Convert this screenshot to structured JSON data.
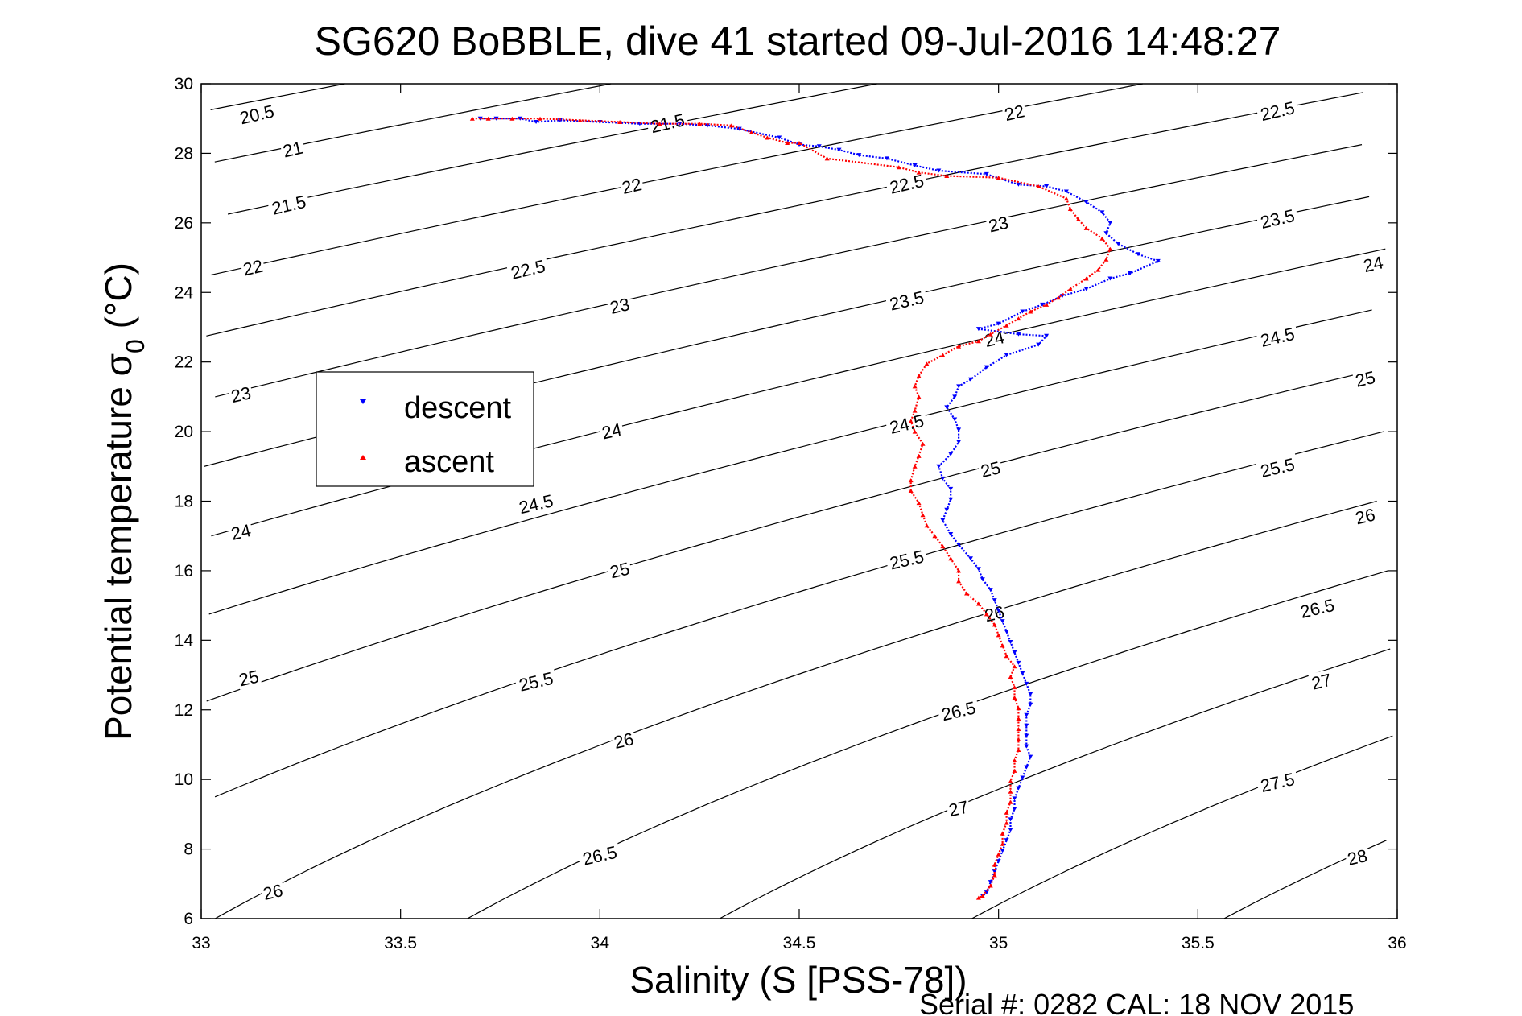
{
  "chart_data": {
    "type": "scatter",
    "title": "SG620 BoBBLE, dive 41 started 09-Jul-2016 14:48:27",
    "xlabel": "Salinity (S [PSS-78])",
    "ylabel": "Potential temperature σ",
    "ylabel_sub": "0",
    "ylabel_unit": " (°C)",
    "xlim": [
      33,
      36
    ],
    "ylim": [
      6,
      30
    ],
    "x_ticks": [
      "33",
      "33.5",
      "34",
      "34.5",
      "35",
      "35.5",
      "36"
    ],
    "y_ticks": [
      "6",
      "8",
      "10",
      "12",
      "14",
      "16",
      "18",
      "20",
      "22",
      "24",
      "26",
      "28",
      "30"
    ],
    "grid": false,
    "legend_position": "upper-left",
    "contour_levels": [
      20.5,
      21,
      21.5,
      22,
      22.5,
      23,
      23.5,
      24,
      24.5,
      25,
      25.5,
      26,
      26.5,
      27,
      27.5,
      28
    ],
    "contour_labels": [
      {
        "text": "20.5",
        "s": 33.14,
        "t": 29.1
      },
      {
        "text": "21",
        "s": 33.23,
        "t": 28.1
      },
      {
        "text": "21.5",
        "s": 33.22,
        "t": 26.5
      },
      {
        "text": "22",
        "s": 33.13,
        "t": 24.7
      },
      {
        "text": "23",
        "s": 33.1,
        "t": 21.05
      },
      {
        "text": "24",
        "s": 33.1,
        "t": 17.1
      },
      {
        "text": "25",
        "s": 33.12,
        "t": 12.9
      },
      {
        "text": "26",
        "s": 33.18,
        "t": 6.75
      },
      {
        "text": "21.5",
        "s": 34.17,
        "t": 28.85
      },
      {
        "text": "22",
        "s": 34.08,
        "t": 27.05
      },
      {
        "text": "22.5",
        "s": 33.82,
        "t": 24.65
      },
      {
        "text": "23",
        "s": 34.05,
        "t": 23.6
      },
      {
        "text": "24",
        "s": 34.03,
        "t": 20.0
      },
      {
        "text": "24.5",
        "s": 33.84,
        "t": 17.9
      },
      {
        "text": "25",
        "s": 34.05,
        "t": 16.0
      },
      {
        "text": "25.5",
        "s": 33.84,
        "t": 12.8
      },
      {
        "text": "26",
        "s": 34.06,
        "t": 11.1
      },
      {
        "text": "26.5",
        "s": 34.0,
        "t": 7.8
      },
      {
        "text": "22.5",
        "s": 34.77,
        "t": 27.1
      },
      {
        "text": "23.5",
        "s": 34.77,
        "t": 23.75
      },
      {
        "text": "24.5",
        "s": 34.77,
        "t": 20.2
      },
      {
        "text": "25.5",
        "s": 34.77,
        "t": 16.3
      },
      {
        "text": "26.5",
        "s": 34.9,
        "t": 11.95
      },
      {
        "text": "27",
        "s": 34.9,
        "t": 9.15
      },
      {
        "text": "22",
        "s": 35.04,
        "t": 29.15
      },
      {
        "text": "23",
        "s": 35.0,
        "t": 25.95
      },
      {
        "text": "24",
        "s": 34.99,
        "t": 22.65
      },
      {
        "text": "25",
        "s": 34.98,
        "t": 18.9
      },
      {
        "text": "26",
        "s": 34.99,
        "t": 14.75
      },
      {
        "text": "22.5",
        "s": 35.7,
        "t": 29.2
      },
      {
        "text": "23.5",
        "s": 35.7,
        "t": 26.1
      },
      {
        "text": "24",
        "s": 35.94,
        "t": 24.8
      },
      {
        "text": "24.5",
        "s": 35.7,
        "t": 22.7
      },
      {
        "text": "25",
        "s": 35.92,
        "t": 21.5
      },
      {
        "text": "25.5",
        "s": 35.7,
        "t": 18.95
      },
      {
        "text": "26",
        "s": 35.92,
        "t": 17.55
      },
      {
        "text": "26.5",
        "s": 35.8,
        "t": 14.9
      },
      {
        "text": "27",
        "s": 35.81,
        "t": 12.8
      },
      {
        "text": "27.5",
        "s": 35.7,
        "t": 9.9
      },
      {
        "text": "28",
        "s": 35.9,
        "t": 7.75
      }
    ],
    "series": [
      {
        "name": "descent",
        "color": "#0000ff",
        "marker": "triangle-down",
        "points": [
          [
            33.7,
            29.0
          ],
          [
            33.74,
            29.0
          ],
          [
            33.8,
            29.0
          ],
          [
            33.84,
            28.9
          ],
          [
            33.9,
            28.95
          ],
          [
            34.0,
            28.9
          ],
          [
            34.1,
            28.85
          ],
          [
            34.2,
            28.85
          ],
          [
            34.27,
            28.8
          ],
          [
            34.35,
            28.7
          ],
          [
            34.45,
            28.45
          ],
          [
            34.5,
            28.25
          ],
          [
            34.55,
            28.2
          ],
          [
            34.6,
            28.1
          ],
          [
            34.65,
            27.95
          ],
          [
            34.72,
            27.85
          ],
          [
            34.79,
            27.65
          ],
          [
            34.85,
            27.5
          ],
          [
            34.97,
            27.4
          ],
          [
            35.05,
            27.1
          ],
          [
            35.12,
            27.05
          ],
          [
            35.17,
            26.9
          ],
          [
            35.22,
            26.6
          ],
          [
            35.26,
            26.3
          ],
          [
            35.28,
            26.0
          ],
          [
            35.27,
            25.7
          ],
          [
            35.3,
            25.4
          ],
          [
            35.35,
            25.1
          ],
          [
            35.4,
            24.9
          ],
          [
            35.33,
            24.55
          ],
          [
            35.28,
            24.4
          ],
          [
            35.22,
            24.1
          ],
          [
            35.16,
            23.9
          ],
          [
            35.11,
            23.65
          ],
          [
            35.06,
            23.45
          ],
          [
            35.0,
            23.1
          ],
          [
            34.95,
            22.95
          ],
          [
            35.05,
            22.8
          ],
          [
            35.12,
            22.75
          ],
          [
            35.1,
            22.5
          ],
          [
            35.02,
            22.2
          ],
          [
            34.97,
            21.85
          ],
          [
            34.93,
            21.5
          ],
          [
            34.9,
            21.3
          ],
          [
            34.89,
            21.0
          ],
          [
            34.87,
            20.7
          ],
          [
            34.89,
            20.35
          ],
          [
            34.9,
            20.05
          ],
          [
            34.9,
            19.7
          ],
          [
            34.88,
            19.35
          ],
          [
            34.85,
            19.0
          ],
          [
            34.86,
            18.65
          ],
          [
            34.88,
            18.35
          ],
          [
            34.88,
            18.05
          ],
          [
            34.87,
            17.75
          ],
          [
            34.86,
            17.45
          ],
          [
            34.88,
            17.05
          ],
          [
            34.9,
            16.75
          ],
          [
            34.93,
            16.35
          ],
          [
            34.95,
            16.05
          ],
          [
            34.96,
            15.75
          ],
          [
            34.98,
            15.45
          ],
          [
            34.99,
            15.15
          ],
          [
            35.0,
            14.85
          ],
          [
            35.01,
            14.55
          ],
          [
            35.02,
            14.25
          ],
          [
            35.03,
            13.95
          ],
          [
            35.04,
            13.65
          ],
          [
            35.05,
            13.35
          ],
          [
            35.06,
            13.05
          ],
          [
            35.07,
            12.75
          ],
          [
            35.08,
            12.45
          ],
          [
            35.08,
            12.15
          ],
          [
            35.07,
            11.85
          ],
          [
            35.07,
            11.55
          ],
          [
            35.07,
            11.25
          ],
          [
            35.07,
            10.95
          ],
          [
            35.08,
            10.65
          ],
          [
            35.07,
            10.35
          ],
          [
            35.06,
            10.05
          ],
          [
            35.05,
            9.75
          ],
          [
            35.04,
            9.45
          ],
          [
            35.04,
            9.15
          ],
          [
            35.03,
            8.85
          ],
          [
            35.03,
            8.55
          ],
          [
            35.02,
            8.25
          ],
          [
            35.01,
            7.95
          ],
          [
            35.0,
            7.65
          ],
          [
            34.99,
            7.35
          ],
          [
            34.98,
            7.05
          ],
          [
            34.97,
            6.75
          ],
          [
            34.96,
            6.65
          ]
        ]
      },
      {
        "name": "ascent",
        "color": "#ff0000",
        "marker": "triangle-up",
        "points": [
          [
            33.68,
            29.0
          ],
          [
            33.72,
            29.0
          ],
          [
            33.78,
            29.0
          ],
          [
            33.85,
            29.0
          ],
          [
            33.95,
            28.95
          ],
          [
            34.05,
            28.9
          ],
          [
            34.15,
            28.85
          ],
          [
            34.25,
            28.85
          ],
          [
            34.33,
            28.8
          ],
          [
            34.38,
            28.6
          ],
          [
            34.42,
            28.45
          ],
          [
            34.47,
            28.3
          ],
          [
            34.5,
            28.3
          ],
          [
            34.57,
            27.85
          ],
          [
            34.75,
            27.6
          ],
          [
            34.8,
            27.45
          ],
          [
            34.87,
            27.35
          ],
          [
            35.0,
            27.3
          ],
          [
            35.1,
            27.05
          ],
          [
            35.17,
            26.7
          ],
          [
            35.18,
            26.4
          ],
          [
            35.2,
            26.1
          ],
          [
            35.22,
            25.85
          ],
          [
            35.26,
            25.55
          ],
          [
            35.28,
            25.25
          ],
          [
            35.27,
            24.95
          ],
          [
            35.25,
            24.65
          ],
          [
            35.22,
            24.4
          ],
          [
            35.18,
            24.1
          ],
          [
            35.15,
            23.85
          ],
          [
            35.12,
            23.65
          ],
          [
            35.08,
            23.45
          ],
          [
            35.05,
            23.25
          ],
          [
            35.02,
            23.05
          ],
          [
            34.98,
            22.8
          ],
          [
            34.95,
            22.6
          ],
          [
            34.9,
            22.45
          ],
          [
            34.86,
            22.2
          ],
          [
            34.82,
            21.95
          ],
          [
            34.8,
            21.6
          ],
          [
            34.79,
            21.3
          ],
          [
            34.8,
            21.0
          ],
          [
            34.79,
            20.6
          ],
          [
            34.78,
            20.3
          ],
          [
            34.79,
            20.0
          ],
          [
            34.81,
            19.65
          ],
          [
            34.8,
            19.3
          ],
          [
            34.79,
            19.0
          ],
          [
            34.78,
            18.6
          ],
          [
            34.78,
            18.3
          ],
          [
            34.8,
            17.95
          ],
          [
            34.81,
            17.6
          ],
          [
            34.82,
            17.3
          ],
          [
            34.84,
            17.0
          ],
          [
            34.86,
            16.7
          ],
          [
            34.88,
            16.35
          ],
          [
            34.9,
            16.0
          ],
          [
            34.9,
            15.7
          ],
          [
            34.92,
            15.35
          ],
          [
            34.95,
            15.05
          ],
          [
            34.97,
            14.75
          ],
          [
            34.99,
            14.45
          ],
          [
            35.0,
            14.15
          ],
          [
            35.01,
            13.85
          ],
          [
            35.02,
            13.55
          ],
          [
            35.04,
            13.25
          ],
          [
            35.03,
            12.95
          ],
          [
            35.04,
            12.65
          ],
          [
            35.04,
            12.35
          ],
          [
            35.05,
            12.05
          ],
          [
            35.05,
            11.75
          ],
          [
            35.05,
            11.45
          ],
          [
            35.05,
            11.15
          ],
          [
            35.05,
            10.85
          ],
          [
            35.04,
            10.55
          ],
          [
            35.04,
            10.25
          ],
          [
            35.03,
            9.95
          ],
          [
            35.03,
            9.65
          ],
          [
            35.03,
            9.35
          ],
          [
            35.02,
            9.05
          ],
          [
            35.02,
            8.75
          ],
          [
            35.01,
            8.45
          ],
          [
            35.01,
            8.15
          ],
          [
            35.0,
            7.85
          ],
          [
            34.99,
            7.55
          ],
          [
            34.99,
            7.25
          ],
          [
            34.98,
            6.95
          ],
          [
            34.96,
            6.65
          ],
          [
            34.95,
            6.6
          ]
        ]
      }
    ]
  },
  "footer": {
    "serial": "Serial #: 0282  CAL: 18 NOV 2015"
  }
}
